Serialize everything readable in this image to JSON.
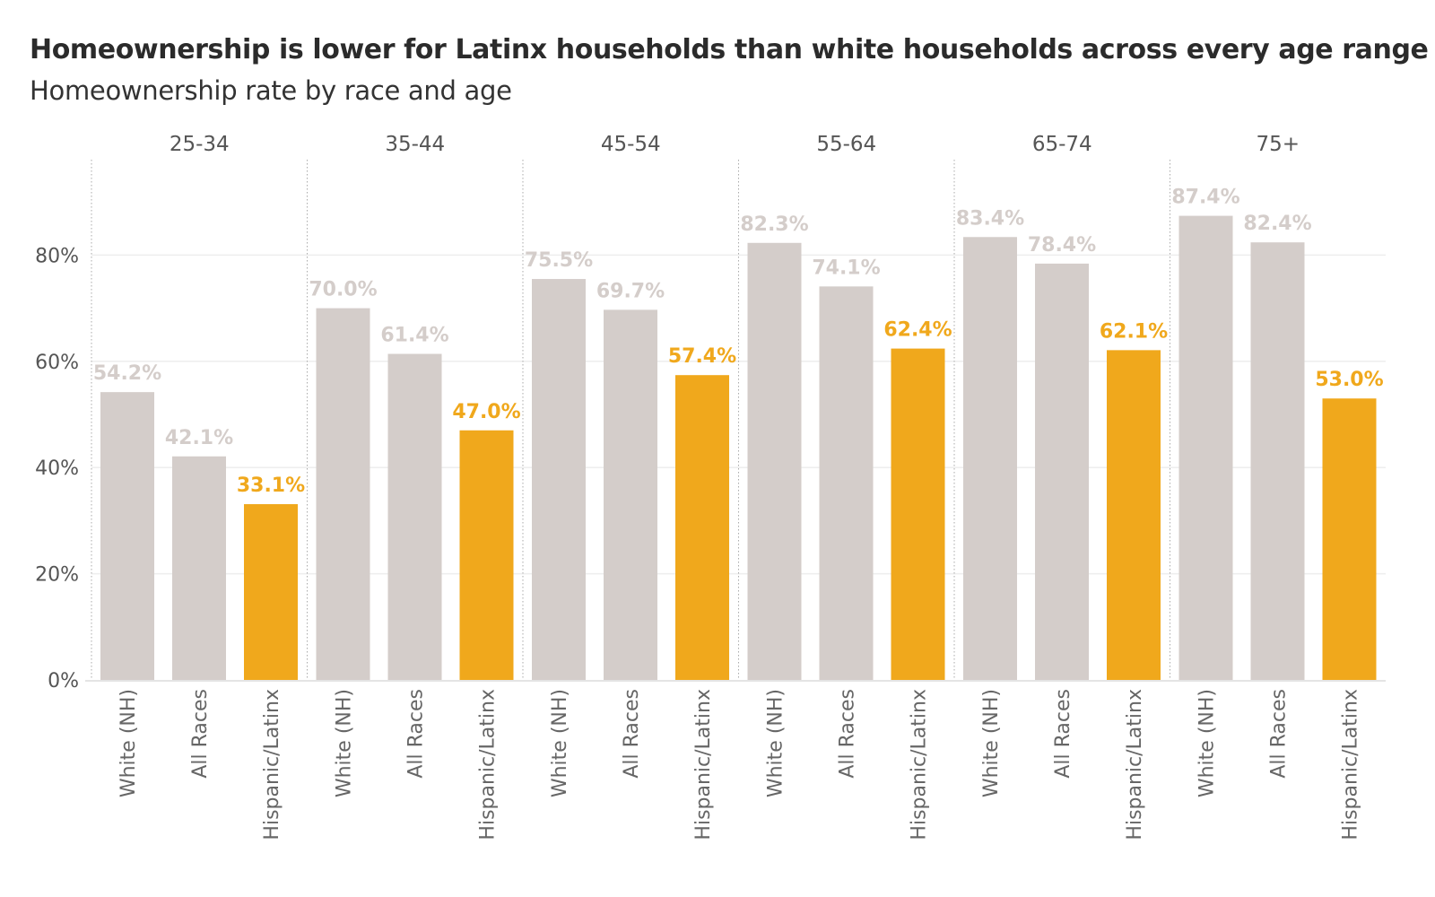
{
  "chart": {
    "title": "Homeownership is lower for Latinx households than white households across every age range",
    "subtitle": "Homeownership rate by race and age"
  },
  "colors": {
    "default_bar": "#d4cdca",
    "highlight_bar": "#f0a81c",
    "default_label": "#d4cdca",
    "highlight_label": "#f0a81c",
    "gridline": "#eeeeee",
    "divider": "#aaaaaa"
  },
  "chart_data": {
    "type": "bar",
    "title": "Homeownership is lower for Latinx households than white households across every age range",
    "subtitle": "Homeownership rate by race and age",
    "xlabel": "",
    "ylabel": "",
    "ylim": [
      0,
      100
    ],
    "yticks": [
      0,
      20,
      40,
      60,
      80
    ],
    "ytick_labels": [
      "0%",
      "20%",
      "40%",
      "60%",
      "80%"
    ],
    "value_format": "percent_1dp",
    "grid": true,
    "legend": "none",
    "highlight_category": "Hispanic/Latinx",
    "groups": [
      {
        "label": "25-34",
        "categories": [
          "White (NH)",
          "All Races",
          "Hispanic/Latinx"
        ],
        "values": [
          54.2,
          42.1,
          33.1
        ],
        "value_labels": [
          "54.2%",
          "42.1%",
          "33.1%"
        ]
      },
      {
        "label": "35-44",
        "categories": [
          "White (NH)",
          "All Races",
          "Hispanic/Latinx"
        ],
        "values": [
          70.0,
          61.4,
          47.0
        ],
        "value_labels": [
          "70.0%",
          "61.4%",
          "47.0%"
        ]
      },
      {
        "label": "45-54",
        "categories": [
          "White (NH)",
          "All Races",
          "Hispanic/Latinx"
        ],
        "values": [
          75.5,
          69.7,
          57.4
        ],
        "value_labels": [
          "75.5%",
          "69.7%",
          "57.4%"
        ]
      },
      {
        "label": "55-64",
        "categories": [
          "White (NH)",
          "All Races",
          "Hispanic/Latinx"
        ],
        "values": [
          82.3,
          74.1,
          62.4
        ],
        "value_labels": [
          "82.3%",
          "74.1%",
          "62.4%"
        ]
      },
      {
        "label": "65-74",
        "categories": [
          "White (NH)",
          "All Races",
          "Hispanic/Latinx"
        ],
        "values": [
          83.4,
          78.4,
          62.1
        ],
        "value_labels": [
          "83.4%",
          "78.4%",
          "62.1%"
        ]
      },
      {
        "label": "75+",
        "categories": [
          "White (NH)",
          "All Races",
          "Hispanic/Latinx"
        ],
        "values": [
          87.4,
          82.4,
          53.0
        ],
        "value_labels": [
          "87.4%",
          "82.4%",
          "53.0%"
        ]
      }
    ]
  }
}
